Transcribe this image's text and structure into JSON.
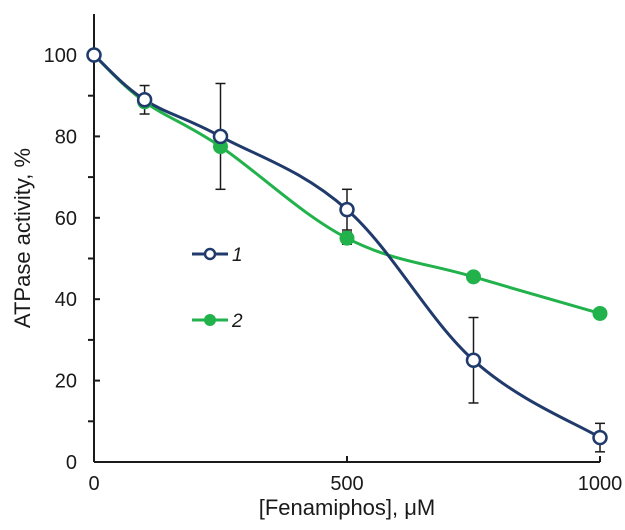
{
  "chart_data": {
    "type": "line",
    "xlabel": "[Fenamiphos], μM",
    "ylabel": "ATPase activity, %",
    "xlim": [
      0,
      1000
    ],
    "ylim": [
      0,
      100
    ],
    "x_ticks": [
      "0",
      "500",
      "1000"
    ],
    "y_ticks": [
      "0",
      "20",
      "40",
      "60",
      "80",
      "100"
    ],
    "grid": false,
    "legend_position": "center-left",
    "series": [
      {
        "name": "1",
        "color": "#1f3a6b",
        "marker": "open-circle",
        "x": [
          0,
          100,
          250,
          500,
          750,
          1000
        ],
        "y": [
          100,
          89,
          80,
          62,
          25,
          6
        ],
        "error": [
          0,
          3.5,
          13,
          5,
          10.5,
          3.5
        ]
      },
      {
        "name": "2",
        "color": "#22b24c",
        "marker": "filled-circle",
        "x": [
          0,
          100,
          250,
          500,
          750,
          1000
        ],
        "y": [
          100,
          88.5,
          77.5,
          55,
          45.5,
          36.5
        ],
        "error": [
          0,
          0,
          0,
          1.5,
          0,
          0
        ]
      }
    ]
  }
}
